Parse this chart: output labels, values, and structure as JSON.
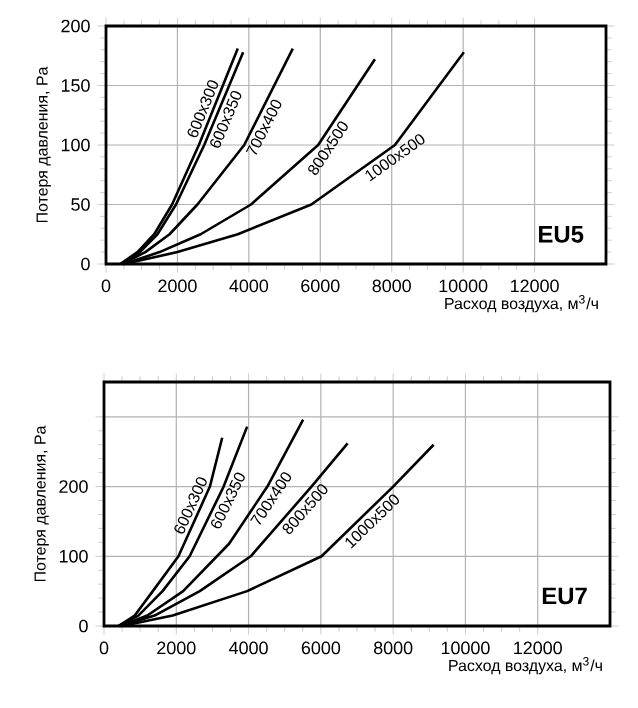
{
  "chart_data": [
    {
      "type": "line",
      "xlabel": "Расход воздуха, м$^{3}$/ч",
      "ylabel": "Потеря давления, Pa",
      "annotations": [
        "EU5"
      ],
      "xlim": [
        0,
        14000
      ],
      "ylim": [
        0,
        200
      ],
      "xticks": [
        0,
        2000,
        4000,
        6000,
        8000,
        10000,
        12000
      ],
      "yticks": [
        0,
        50,
        100,
        150,
        200
      ],
      "grid": true,
      "series": [
        {
          "name": "600x300",
          "color": "#000000",
          "x": [
            400,
            880,
            1350,
            1850,
            2600,
            3690
          ],
          "values": [
            0,
            10,
            25,
            50,
            100,
            181
          ]
        },
        {
          "name": "600x350",
          "color": "#000000",
          "x": [
            450,
            950,
            1440,
            1960,
            2750,
            3840
          ],
          "values": [
            0,
            10,
            25,
            50,
            100,
            178
          ]
        },
        {
          "name": "700x400",
          "color": "#000000",
          "x": [
            450,
            1100,
            1780,
            2560,
            3870,
            5230
          ],
          "values": [
            0,
            10,
            25,
            50,
            100,
            181
          ]
        },
        {
          "name": "800x500",
          "color": "#000000",
          "x": [
            500,
            1500,
            2650,
            4060,
            5940,
            7530
          ],
          "values": [
            0,
            10,
            25,
            50,
            100,
            172
          ]
        },
        {
          "name": "1000x500",
          "color": "#000000",
          "x": [
            500,
            2000,
            3690,
            5750,
            8090,
            10020
          ],
          "values": [
            0,
            10,
            25,
            50,
            100,
            178
          ]
        }
      ]
    },
    {
      "type": "line",
      "xlabel": "Расход воздуха, м$^{3}$/ч",
      "ylabel": "Потеря давления, Pa",
      "annotations": [
        "EU7"
      ],
      "xlim": [
        0,
        14000
      ],
      "ylim": [
        0,
        350
      ],
      "xticks": [
        0,
        2000,
        4000,
        6000,
        8000,
        10000,
        12000
      ],
      "yticks": [
        0,
        100,
        200,
        {
          "value": 300,
          "label": null
        }
      ],
      "grid": true,
      "series": [
        {
          "name": "600x300",
          "color": "#000000",
          "x": [
            400,
            850,
            1350,
            2060,
            2930,
            3270
          ],
          "values": [
            0,
            15,
            50,
            100,
            200,
            270
          ]
        },
        {
          "name": "600x350",
          "color": "#000000",
          "x": [
            400,
            950,
            1620,
            2370,
            3310,
            3960
          ],
          "values": [
            0,
            15,
            50,
            100,
            200,
            286
          ]
        },
        {
          "name": "700x400",
          "color": "#000000",
          "x": [
            450,
            1200,
            2190,
            3460,
            4520,
            5510
          ],
          "values": [
            0,
            15,
            50,
            118,
            200,
            296
          ]
        },
        {
          "name": "800x500",
          "color": "#000000",
          "x": [
            450,
            1400,
            2650,
            4060,
            5740,
            6740
          ],
          "values": [
            0,
            15,
            50,
            100,
            200,
            262
          ]
        },
        {
          "name": "1000x500",
          "color": "#000000",
          "x": [
            500,
            1900,
            3960,
            6020,
            8000,
            9120
          ],
          "values": [
            0,
            15,
            50,
            100,
            200,
            260
          ]
        }
      ]
    }
  ]
}
